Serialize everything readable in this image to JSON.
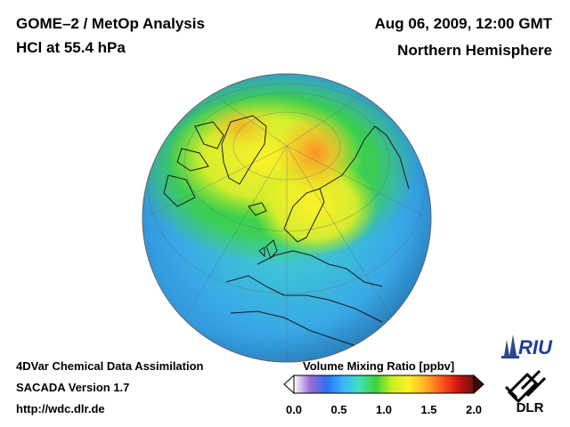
{
  "header": {
    "title": "GOME–2 / MetOp Analysis",
    "species": "HCl at 55.4 hPa",
    "datetime": "Aug 06, 2009, 12:00 GMT",
    "region": "Northern Hemisphere"
  },
  "footer": {
    "method": "4DVar Chemical Data Assimilation",
    "version": "SACADA Version 1.7",
    "url": "http://wdc.dlr.de"
  },
  "colorbar": {
    "title": "Volume Mixing Ratio [ppbv]",
    "ticks": [
      "0.0",
      "0.5",
      "1.0",
      "1.5",
      "2.0"
    ],
    "range": [
      0.0,
      2.0
    ],
    "colors": [
      "#ffffff",
      "#9b6bd4",
      "#2f6ff0",
      "#39b6ff",
      "#44e0b8",
      "#3cd23c",
      "#c8f020",
      "#fff02a",
      "#ffb428",
      "#ff5a1e",
      "#d21414",
      "#6e1010"
    ]
  },
  "logos": {
    "riu": "RIU",
    "dlr": "DLR"
  },
  "map": {
    "projection": "orthographic",
    "center": "North Pole / Europe",
    "colors": {
      "ocean_low": "#38a8e6",
      "mid": "#3cd23c",
      "high": "#fff02a",
      "peak": "#ff8c28"
    }
  }
}
